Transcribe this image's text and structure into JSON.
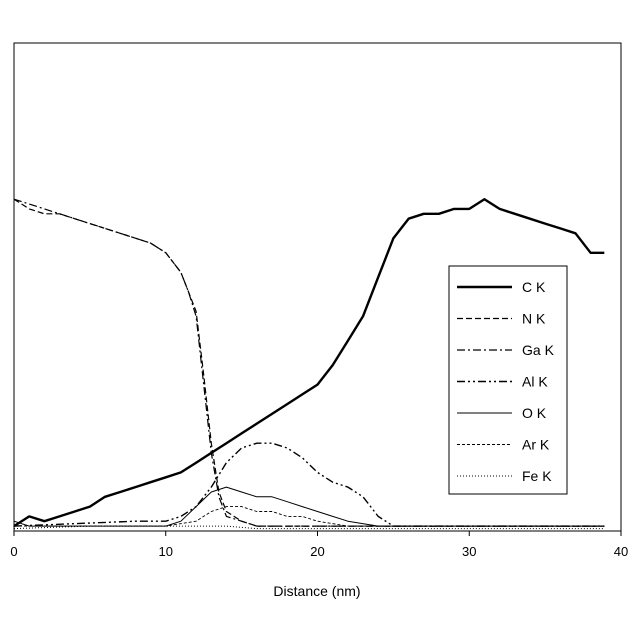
{
  "chart_data": {
    "type": "line",
    "title": "",
    "xlabel": "Distance (nm)",
    "ylabel": "",
    "xlim": [
      0,
      40
    ],
    "ylim": [
      0,
      1
    ],
    "x_ticks": [
      0,
      10,
      20,
      30,
      40
    ],
    "y_ticks": [],
    "grid": false,
    "legend_position": "right",
    "series": [
      {
        "name": "C K",
        "style": "thick-solid",
        "color": "#000000",
        "points": [
          [
            0,
            0.01
          ],
          [
            1,
            0.03
          ],
          [
            2,
            0.02
          ],
          [
            3,
            0.03
          ],
          [
            4,
            0.04
          ],
          [
            5,
            0.05
          ],
          [
            6,
            0.07
          ],
          [
            7,
            0.08
          ],
          [
            8,
            0.09
          ],
          [
            9,
            0.1
          ],
          [
            10,
            0.11
          ],
          [
            11,
            0.12
          ],
          [
            12,
            0.14
          ],
          [
            13,
            0.16
          ],
          [
            14,
            0.18
          ],
          [
            15,
            0.2
          ],
          [
            16,
            0.22
          ],
          [
            17,
            0.24
          ],
          [
            18,
            0.26
          ],
          [
            19,
            0.28
          ],
          [
            20,
            0.3
          ],
          [
            21,
            0.34
          ],
          [
            22,
            0.39
          ],
          [
            23,
            0.44
          ],
          [
            24,
            0.52
          ],
          [
            25,
            0.6
          ],
          [
            26,
            0.64
          ],
          [
            27,
            0.65
          ],
          [
            28,
            0.65
          ],
          [
            29,
            0.66
          ],
          [
            30,
            0.66
          ],
          [
            31,
            0.68
          ],
          [
            32,
            0.66
          ],
          [
            33,
            0.65
          ],
          [
            34,
            0.64
          ],
          [
            35,
            0.63
          ],
          [
            36,
            0.62
          ],
          [
            37,
            0.61
          ],
          [
            38,
            0.57
          ],
          [
            38.9,
            0.57
          ]
        ]
      },
      {
        "name": "N K",
        "style": "dashed",
        "color": "#000000",
        "points": [
          [
            0,
            0.68
          ],
          [
            1,
            0.66
          ],
          [
            2,
            0.65
          ],
          [
            3,
            0.65
          ],
          [
            4,
            0.64
          ],
          [
            5,
            0.63
          ],
          [
            6,
            0.62
          ],
          [
            7,
            0.61
          ],
          [
            8,
            0.6
          ],
          [
            9,
            0.59
          ],
          [
            10,
            0.57
          ],
          [
            11,
            0.53
          ],
          [
            11.5,
            0.49
          ],
          [
            12,
            0.45
          ],
          [
            12.5,
            0.32
          ],
          [
            13,
            0.18
          ],
          [
            13.5,
            0.08
          ],
          [
            14,
            0.04
          ],
          [
            15,
            0.02
          ],
          [
            16,
            0.01
          ],
          [
            20,
            0.01
          ],
          [
            25,
            0.01
          ],
          [
            30,
            0.01
          ],
          [
            35,
            0.01
          ],
          [
            38.9,
            0.01
          ]
        ]
      },
      {
        "name": "Ga K",
        "style": "dash-dot",
        "color": "#000000",
        "points": [
          [
            0,
            0.68
          ],
          [
            1,
            0.67
          ],
          [
            2,
            0.66
          ],
          [
            3,
            0.65
          ],
          [
            4,
            0.64
          ],
          [
            5,
            0.63
          ],
          [
            6,
            0.62
          ],
          [
            7,
            0.61
          ],
          [
            8,
            0.6
          ],
          [
            9,
            0.59
          ],
          [
            10,
            0.57
          ],
          [
            11,
            0.53
          ],
          [
            11.5,
            0.49
          ],
          [
            12,
            0.44
          ],
          [
            12.5,
            0.3
          ],
          [
            13,
            0.16
          ],
          [
            13.5,
            0.07
          ],
          [
            14,
            0.03
          ],
          [
            15,
            0.02
          ],
          [
            16,
            0.01
          ],
          [
            20,
            0.01
          ],
          [
            25,
            0.01
          ],
          [
            30,
            0.01
          ],
          [
            35,
            0.01
          ],
          [
            38.9,
            0.01
          ]
        ]
      },
      {
        "name": "Al K",
        "style": "dash-dot-dot",
        "color": "#000000",
        "points": [
          [
            0,
            0.01
          ],
          [
            8,
            0.02
          ],
          [
            10,
            0.02
          ],
          [
            11,
            0.03
          ],
          [
            12,
            0.05
          ],
          [
            13,
            0.09
          ],
          [
            14,
            0.14
          ],
          [
            15,
            0.17
          ],
          [
            16,
            0.18
          ],
          [
            17,
            0.18
          ],
          [
            18,
            0.17
          ],
          [
            19,
            0.15
          ],
          [
            20,
            0.12
          ],
          [
            21,
            0.1
          ],
          [
            22,
            0.09
          ],
          [
            23,
            0.07
          ],
          [
            24,
            0.03
          ],
          [
            25,
            0.01
          ],
          [
            30,
            0.01
          ],
          [
            35,
            0.01
          ],
          [
            38.9,
            0.01
          ]
        ]
      },
      {
        "name": "O K",
        "style": "thin-solid",
        "color": "#000000",
        "points": [
          [
            0,
            0.02
          ],
          [
            1,
            0.01
          ],
          [
            2,
            0.01
          ],
          [
            4,
            0.01
          ],
          [
            6,
            0.01
          ],
          [
            8,
            0.01
          ],
          [
            10,
            0.01
          ],
          [
            11,
            0.02
          ],
          [
            12,
            0.05
          ],
          [
            13,
            0.08
          ],
          [
            14,
            0.09
          ],
          [
            15,
            0.08
          ],
          [
            16,
            0.07
          ],
          [
            17,
            0.07
          ],
          [
            18,
            0.06
          ],
          [
            19,
            0.05
          ],
          [
            20,
            0.04
          ],
          [
            21,
            0.03
          ],
          [
            22,
            0.02
          ],
          [
            24,
            0.01
          ],
          [
            30,
            0.01
          ],
          [
            35,
            0.01
          ],
          [
            38.9,
            0.01
          ]
        ]
      },
      {
        "name": "Ar K",
        "style": "fine-dashed",
        "color": "#000000",
        "points": [
          [
            0,
            0.01
          ],
          [
            5,
            0.01
          ],
          [
            10,
            0.01
          ],
          [
            12,
            0.02
          ],
          [
            13,
            0.04
          ],
          [
            14,
            0.05
          ],
          [
            15,
            0.05
          ],
          [
            16,
            0.04
          ],
          [
            17,
            0.04
          ],
          [
            18,
            0.03
          ],
          [
            19,
            0.03
          ],
          [
            20,
            0.02
          ],
          [
            22,
            0.01
          ],
          [
            25,
            0.01
          ],
          [
            30,
            0.01
          ],
          [
            35,
            0.01
          ],
          [
            38.9,
            0.01
          ]
        ]
      },
      {
        "name": "Fe K",
        "style": "dotted",
        "color": "#000000",
        "points": [
          [
            0,
            0.005
          ],
          [
            5,
            0.01
          ],
          [
            10,
            0.01
          ],
          [
            12,
            0.01
          ],
          [
            13,
            0.01
          ],
          [
            14,
            0.01
          ],
          [
            16,
            0.005
          ],
          [
            20,
            0.005
          ],
          [
            25,
            0.005
          ],
          [
            30,
            0.005
          ],
          [
            35,
            0.005
          ],
          [
            38.9,
            0.005
          ]
        ]
      }
    ]
  }
}
